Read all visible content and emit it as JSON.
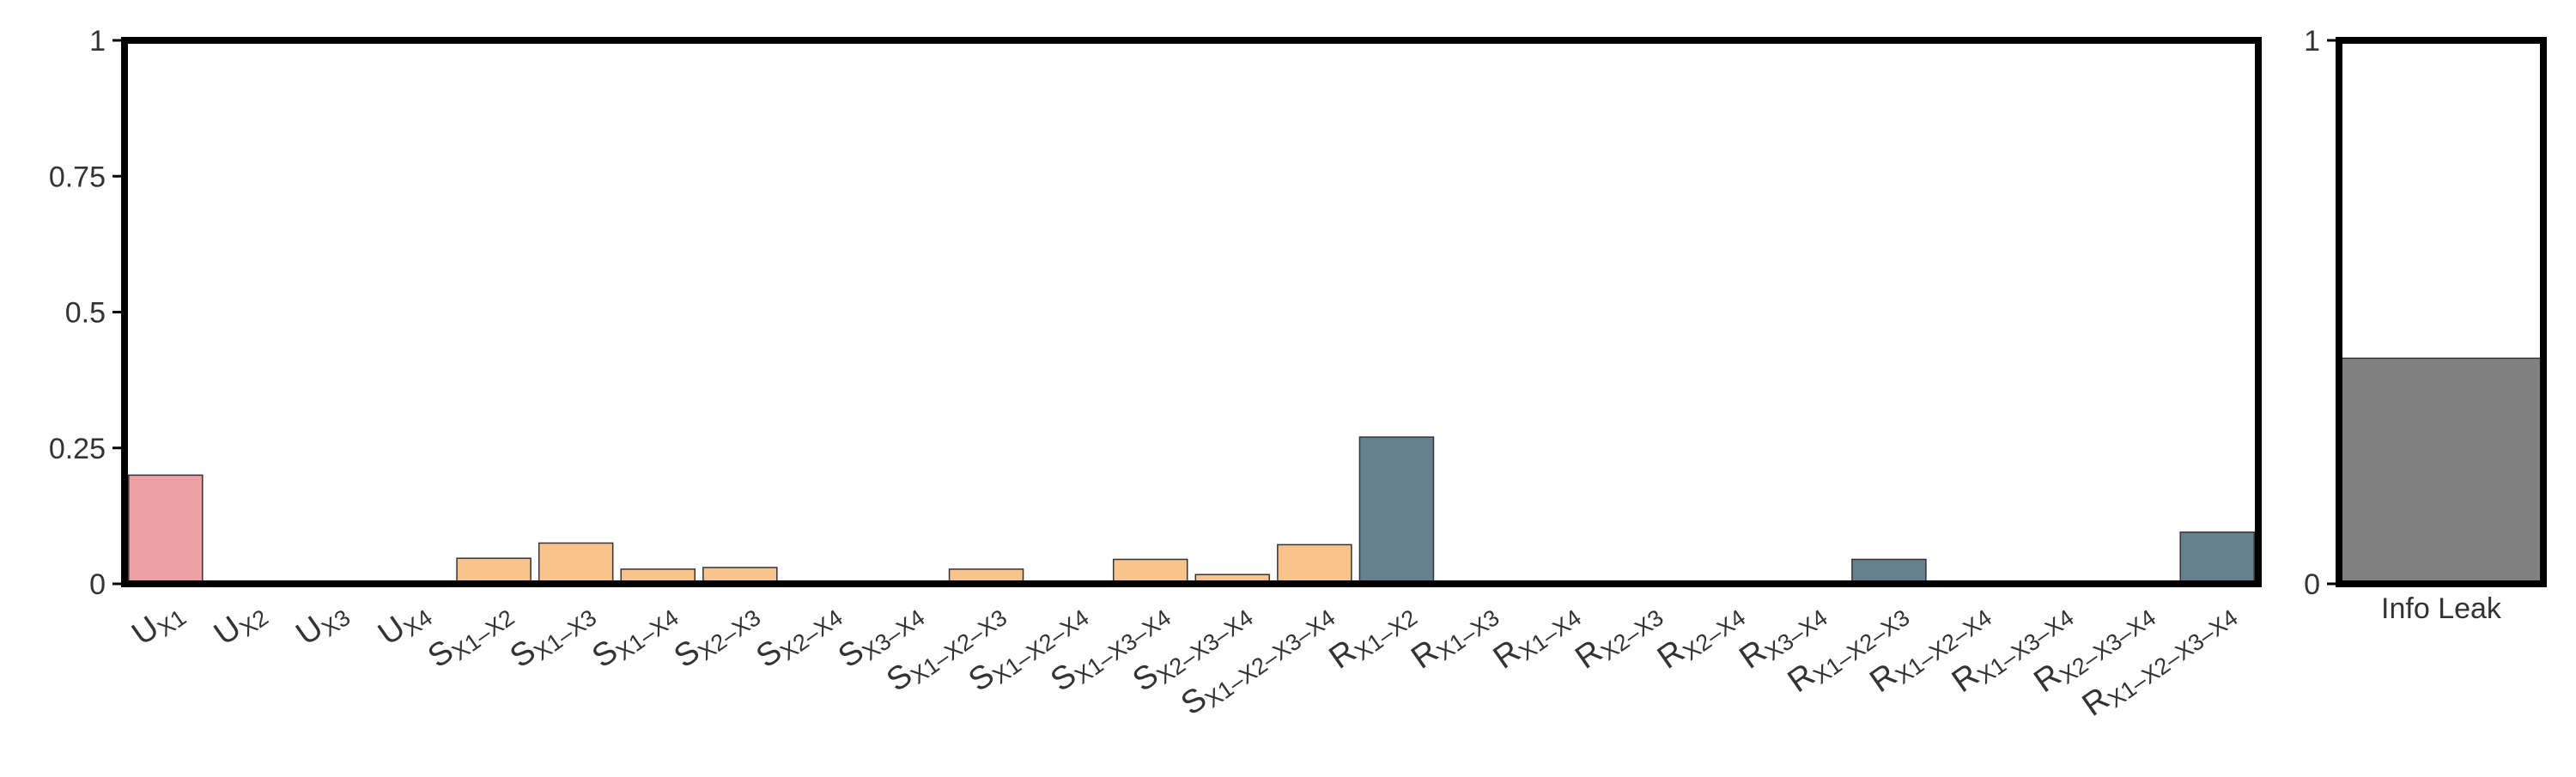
{
  "chart_data": [
    {
      "type": "bar",
      "ylim": [
        0,
        1
      ],
      "yticks": [
        "0",
        "0.25",
        "0.5",
        "0.75",
        "1"
      ],
      "ytick_values": [
        0,
        0.25,
        0.5,
        0.75,
        1
      ],
      "grid": false,
      "colors": {
        "unique": "#EDA1A5",
        "synergy": "#F9C48B",
        "redundancy": "#65808F",
        "edge": "#333333"
      },
      "categories": [
        {
          "main": "U",
          "sub": "X1",
          "value": 0.2,
          "group": "unique"
        },
        {
          "main": "U",
          "sub": "X2",
          "value": 0,
          "group": "unique"
        },
        {
          "main": "U",
          "sub": "X3",
          "value": 0,
          "group": "unique"
        },
        {
          "main": "U",
          "sub": "X4",
          "value": 0,
          "group": "unique"
        },
        {
          "main": "S",
          "sub": "X1–X2",
          "value": 0.047,
          "group": "synergy"
        },
        {
          "main": "S",
          "sub": "X1–X3",
          "value": 0.075,
          "group": "synergy"
        },
        {
          "main": "S",
          "sub": "X1–X4",
          "value": 0.027,
          "group": "synergy"
        },
        {
          "main": "S",
          "sub": "X2–X3",
          "value": 0.03,
          "group": "synergy"
        },
        {
          "main": "S",
          "sub": "X2–X4",
          "value": 0,
          "group": "synergy"
        },
        {
          "main": "S",
          "sub": "X3–X4",
          "value": 0,
          "group": "synergy"
        },
        {
          "main": "S",
          "sub": "X1–X2–X3",
          "value": 0.027,
          "group": "synergy"
        },
        {
          "main": "S",
          "sub": "X1–X2–X4",
          "value": 0,
          "group": "synergy"
        },
        {
          "main": "S",
          "sub": "X1–X3–X4",
          "value": 0.045,
          "group": "synergy"
        },
        {
          "main": "S",
          "sub": "X2–X3–X4",
          "value": 0.017,
          "group": "synergy"
        },
        {
          "main": "S",
          "sub": "X1–X2–X3–X4",
          "value": 0.072,
          "group": "synergy"
        },
        {
          "main": "R",
          "sub": "X1–X2",
          "value": 0.27,
          "group": "redundancy"
        },
        {
          "main": "R",
          "sub": "X1–X3",
          "value": 0,
          "group": "redundancy"
        },
        {
          "main": "R",
          "sub": "X1–X4",
          "value": 0,
          "group": "redundancy"
        },
        {
          "main": "R",
          "sub": "X2–X3",
          "value": 0,
          "group": "redundancy"
        },
        {
          "main": "R",
          "sub": "X2–X4",
          "value": 0,
          "group": "redundancy"
        },
        {
          "main": "R",
          "sub": "X3–X4",
          "value": 0,
          "group": "redundancy"
        },
        {
          "main": "R",
          "sub": "X1–X2–X3",
          "value": 0.045,
          "group": "redundancy"
        },
        {
          "main": "R",
          "sub": "X1–X2–X4",
          "value": 0,
          "group": "redundancy"
        },
        {
          "main": "R",
          "sub": "X1–X3–X4",
          "value": 0,
          "group": "redundancy"
        },
        {
          "main": "R",
          "sub": "X2–X3–X4",
          "value": 0,
          "group": "redundancy"
        },
        {
          "main": "R",
          "sub": "X1–X2–X3–X4",
          "value": 0.095,
          "group": "redundancy"
        }
      ]
    },
    {
      "type": "bar",
      "ylim": [
        0,
        1
      ],
      "yticks": [
        "0",
        "1"
      ],
      "ytick_values": [
        0,
        1
      ],
      "grid": false,
      "categories": [
        {
          "label": "Info Leak",
          "value": 0.415
        }
      ],
      "colors": {
        "bar": "#808080",
        "edge": "#333333"
      }
    }
  ]
}
